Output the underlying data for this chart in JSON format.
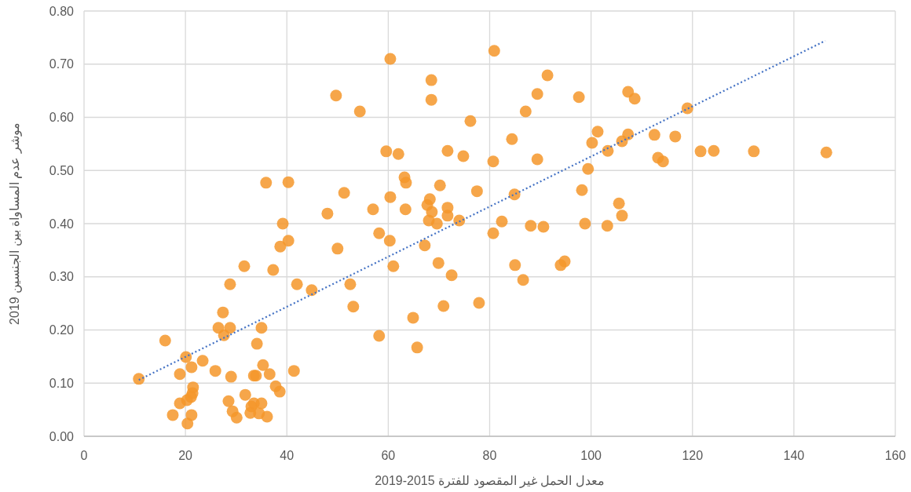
{
  "chart_data": {
    "type": "scatter",
    "xlabel": "معدل الحمل غير المقصود للفترة 2015-2019",
    "ylabel": "موشر عدم المساواة بين الجنسين 2019",
    "xlim": [
      0,
      160
    ],
    "xticks": [
      0,
      20,
      40,
      60,
      80,
      100,
      120,
      140,
      160
    ],
    "ylim": [
      0,
      0.8
    ],
    "yticks": [
      {
        "value": 0,
        "label": "0.00"
      },
      {
        "value": 0.1,
        "label": "0.10"
      },
      {
        "value": 0.2,
        "label": "0.20"
      },
      {
        "value": 0.3,
        "label": "0.30"
      },
      {
        "value": 0.4,
        "label": "0.40"
      },
      {
        "value": 0.5,
        "label": "0.50"
      },
      {
        "value": 0.6,
        "label": "0.60"
      },
      {
        "value": 0.7,
        "label": "0.70"
      },
      {
        "value": 0.8,
        "label": "0.80"
      }
    ],
    "grid": true,
    "series": [
      {
        "color": "#f5972a",
        "marker": "circle",
        "x": [
          10.8,
          16.0,
          20.1,
          18.9,
          21.2,
          21.5,
          21.4,
          21.1,
          20.3,
          18.9,
          17.5,
          21.2,
          20.4,
          23.4,
          25.9,
          26.5,
          27.4,
          27.6,
          28.8,
          28.8,
          29.0,
          28.5,
          29.3,
          30.1,
          31.8,
          31.6,
          33.0,
          32.8,
          33.5,
          33.9,
          33.5,
          35.0,
          34.5,
          35.3,
          35.0,
          34.1,
          35.9,
          36.1,
          36.6,
          37.3,
          37.8,
          38.6,
          38.7,
          39.2,
          40.3,
          40.3,
          41.4,
          42.0,
          44.9,
          48.0,
          50.0,
          51.3,
          52.5,
          53.1,
          49.7,
          54.4,
          57.0,
          58.2,
          58.2,
          59.6,
          60.4,
          62.0,
          60.3,
          60.4,
          61.0,
          63.2,
          63.5,
          63.4,
          64.9,
          65.7,
          67.2,
          67.7,
          68.2,
          68.0,
          68.5,
          68.5,
          68.6,
          69.6,
          69.9,
          70.2,
          70.9,
          71.7,
          71.7,
          71.7,
          72.5,
          74.0,
          74.8,
          76.2,
          77.5,
          77.9,
          80.7,
          80.7,
          80.9,
          82.4,
          84.4,
          84.9,
          85.0,
          86.6,
          87.1,
          88.1,
          89.4,
          89.4,
          90.6,
          91.4,
          94.0,
          94.8,
          97.6,
          98.2,
          98.8,
          99.4,
          100.2,
          101.3,
          103.2,
          103.3,
          105.5,
          106.1,
          106.1,
          107.3,
          107.3,
          108.6,
          112.5,
          113.2,
          114.2,
          116.6,
          119.0,
          121.6,
          124.2,
          132.1,
          146.4
        ],
        "values": [
          0.108,
          0.18,
          0.149,
          0.117,
          0.13,
          0.092,
          0.081,
          0.074,
          0.068,
          0.062,
          0.04,
          0.04,
          0.024,
          0.142,
          0.123,
          0.204,
          0.233,
          0.19,
          0.286,
          0.204,
          0.112,
          0.066,
          0.047,
          0.035,
          0.078,
          0.32,
          0.056,
          0.044,
          0.114,
          0.114,
          0.062,
          0.062,
          0.043,
          0.134,
          0.204,
          0.174,
          0.477,
          0.037,
          0.117,
          0.313,
          0.094,
          0.084,
          0.357,
          0.4,
          0.368,
          0.478,
          0.123,
          0.286,
          0.275,
          0.419,
          0.353,
          0.458,
          0.286,
          0.244,
          0.641,
          0.611,
          0.427,
          0.382,
          0.189,
          0.536,
          0.71,
          0.531,
          0.368,
          0.45,
          0.32,
          0.487,
          0.477,
          0.427,
          0.223,
          0.167,
          0.359,
          0.435,
          0.446,
          0.406,
          0.67,
          0.633,
          0.422,
          0.4,
          0.326,
          0.472,
          0.245,
          0.43,
          0.415,
          0.537,
          0.303,
          0.406,
          0.527,
          0.593,
          0.461,
          0.251,
          0.382,
          0.517,
          0.725,
          0.404,
          0.559,
          0.455,
          0.322,
          0.294,
          0.611,
          0.396,
          0.521,
          0.644,
          0.394,
          0.679,
          0.322,
          0.329,
          0.638,
          0.463,
          0.4,
          0.503,
          0.552,
          0.573,
          0.396,
          0.537,
          0.438,
          0.415,
          0.555,
          0.568,
          0.648,
          0.635,
          0.567,
          0.524,
          0.517,
          0.564,
          0.617,
          0.536,
          0.537,
          0.536,
          0.534
        ]
      },
      {
        "type": "line",
        "color": "#4472c4",
        "line_style": "dotted",
        "marker": "none",
        "x": [
          10.8,
          146.2
        ],
        "values": [
          0.106,
          0.744
        ]
      }
    ]
  }
}
